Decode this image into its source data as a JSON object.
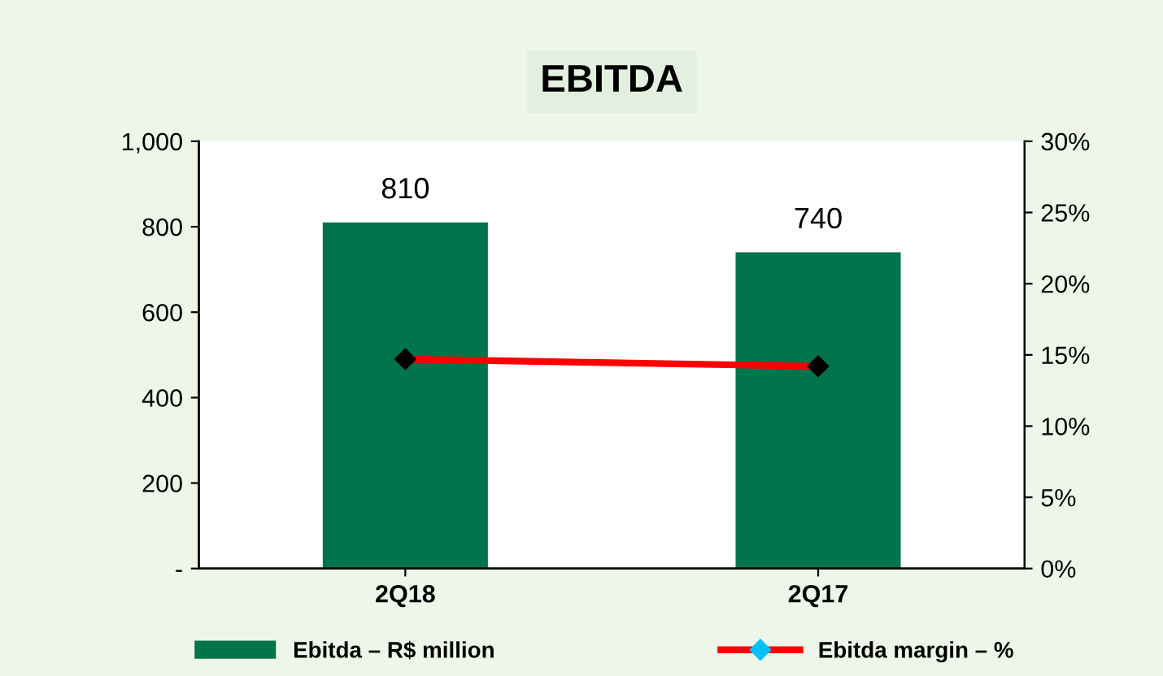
{
  "chart_data": {
    "type": "bar",
    "title": "EBITDA",
    "categories": [
      "2Q18",
      "2Q17"
    ],
    "series": [
      {
        "name": "Ebitda – R$ million",
        "color": "#00744a",
        "values": [
          810,
          740
        ],
        "value_labels": [
          "810",
          "740"
        ]
      },
      {
        "name": "Ebitda margin – %",
        "type": "line",
        "axis": "y2",
        "color": "#ff0000",
        "marker": "diamond",
        "values": [
          14.7,
          14.2
        ]
      }
    ],
    "ylim": [
      0,
      1000
    ],
    "yticks": [
      {
        "value": 0,
        "label": "-"
      },
      200,
      400,
      600,
      800,
      {
        "value": 1000,
        "label": "1,000"
      }
    ],
    "y2lim": [
      0,
      30
    ],
    "y2ticks": [
      {
        "value": 0,
        "label": "0%"
      },
      {
        "value": 5,
        "label": "5%"
      },
      {
        "value": 10,
        "label": "10%"
      },
      {
        "value": 15,
        "label": "15%"
      },
      {
        "value": 20,
        "label": "20%"
      },
      {
        "value": 25,
        "label": "25%"
      },
      {
        "value": 30,
        "label": "30%"
      }
    ],
    "grid": false,
    "legend": "bottom"
  }
}
